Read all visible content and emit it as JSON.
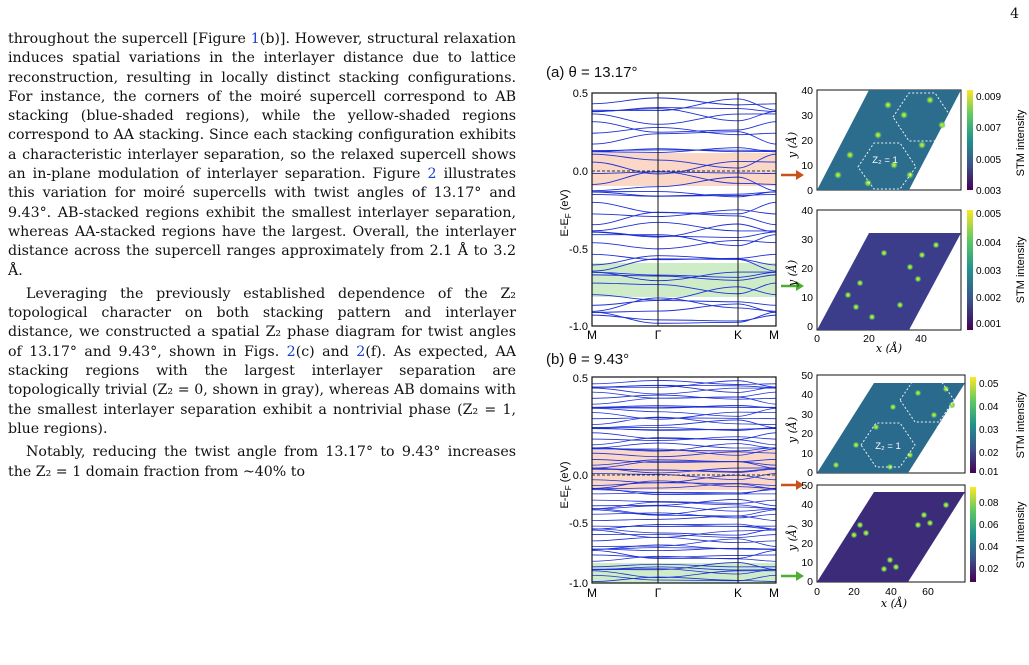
{
  "page_number": "4",
  "body": {
    "p1_a": "throughout the supercell [Figure ",
    "p1_ref1": "1",
    "p1_b": "(b)]. However, structural relaxation induces spatial variations in the interlayer distance due to lattice reconstruction, resulting in locally distinct stacking configurations. For instance, the corners of the moiré supercell correspond to AB stacking (blue-shaded regions), while the yellow-shaded regions correspond to AA stacking. Since each stacking configuration exhibits a characteristic interlayer separation, so the relaxed supercell shows an in-plane modulation of interlayer separation. Figure ",
    "p1_ref2": "2",
    "p1_c": " illustrates this variation for moiré supercells with twist angles of 13.17° and 9.43°. AB-stacked regions exhibit the smallest interlayer separation, whereas AA-stacked regions have the largest. Overall, the interlayer distance across the supercell ranges approximately from 2.1 Å to 3.2 Å.",
    "p2_a": "Leveraging the previously established dependence of the Z₂ topological character on both stacking pattern and interlayer distance, we constructed a spatial Z₂ phase diagram for twist angles of 13.17° and 9.43°, shown in Figs. ",
    "p2_ref1": "2",
    "p2_b": "(c) and ",
    "p2_ref2": "2",
    "p2_c": "(f). As expected, AA stacking regions with the largest interlayer separation are topologically trivial (Z₂ = 0, shown in gray), whereas AB domains with the smallest interlayer separation exhibit a nontrivial phase (Z₂ = 1, blue regions).",
    "p3": "Notably, reducing the twist angle from 13.17° to 9.43° increases the Z₂ = 1 domain fraction from ~40% to"
  },
  "figure": {
    "panel_a_title": "(a)  θ = 13.17°",
    "panel_b_title": "(b)  θ = 9.43°",
    "band_ylabel": "E-E",
    "band_ylabel_sub": "F",
    "band_ylabel_tail": " (eV)",
    "kpoints": [
      "M",
      "Γ",
      "K",
      "M"
    ],
    "band_yticks": [
      "0.5",
      "0.0",
      "-0.5",
      "-1.0"
    ],
    "stm_xlabel": "x (Å)",
    "stm_ylabel": "y (Å)",
    "stm_cbar_label": "STM intensity",
    "z2_label": "Z₂ = 1",
    "a_top_yticks": [
      "40",
      "30",
      "20",
      "10",
      "0"
    ],
    "a_bot_yticks": [
      "40",
      "30",
      "20",
      "10",
      "0"
    ],
    "a_xticks": [
      "0",
      "20",
      "40"
    ],
    "a_top_cbar": [
      "0.009",
      "0.007",
      "0.005",
      "0.003"
    ],
    "a_bot_cbar": [
      "0.005",
      "0.004",
      "0.003",
      "0.002",
      "0.001"
    ],
    "b_top_yticks": [
      "50",
      "40",
      "30",
      "20",
      "10",
      "0"
    ],
    "b_bot_yticks": [
      "50",
      "40",
      "30",
      "20",
      "10",
      "0"
    ],
    "b_xticks": [
      "0",
      "20",
      "40",
      "60"
    ],
    "b_top_cbar": [
      "0.05",
      "0.04",
      "0.03",
      "0.02",
      "0.01"
    ],
    "b_bot_cbar": [
      "0.08",
      "0.06",
      "0.04",
      "0.02"
    ],
    "colors": {
      "band_line": "#1d2fd6",
      "pink_shade": "#f8c9b4",
      "green_shade": "#bfe6b5",
      "arrow_orange": "#c8521a",
      "arrow_green": "#4caf32",
      "link_blue": "#1a3fcf"
    }
  }
}
